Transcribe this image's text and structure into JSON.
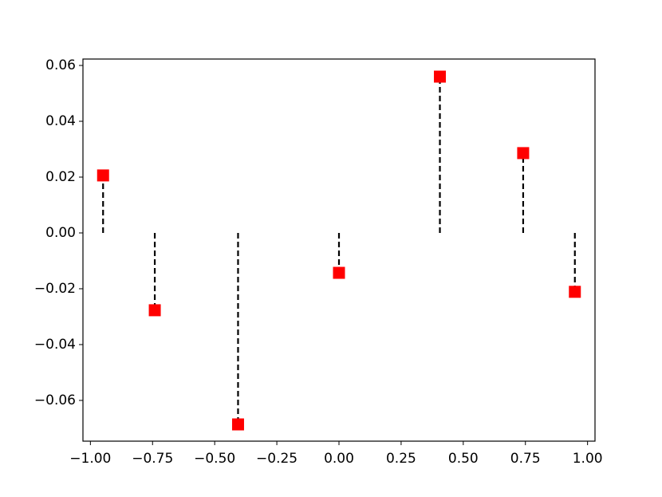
{
  "chart_data": {
    "type": "stem",
    "x": [
      -0.949,
      -0.741,
      -0.406,
      0,
      0.406,
      0.741,
      0.949
    ],
    "values": [
      0.0206,
      -0.0277,
      -0.0686,
      -0.0143,
      0.056,
      0.0286,
      -0.0211
    ],
    "color": "#ff0000",
    "stem_color": "#000000",
    "xlim": [
      -1.03,
      1.03
    ],
    "ylim": [
      -0.0746,
      0.0623
    ],
    "xticks": [
      {
        "value": -1,
        "label": "−1.00"
      },
      {
        "value": -0.75,
        "label": "−0.75"
      },
      {
        "value": -0.5,
        "label": "−0.50"
      },
      {
        "value": -0.25,
        "label": "−0.25"
      },
      {
        "value": 0,
        "label": "0.00"
      },
      {
        "value": 0.25,
        "label": "0.25"
      },
      {
        "value": 0.5,
        "label": "0.50"
      },
      {
        "value": 0.75,
        "label": "0.75"
      },
      {
        "value": 1,
        "label": "1.00"
      }
    ],
    "yticks": [
      {
        "value": -0.06,
        "label": "−0.06"
      },
      {
        "value": -0.04,
        "label": "−0.04"
      },
      {
        "value": -0.02,
        "label": "−0.02"
      },
      {
        "value": 0,
        "label": "0.00"
      },
      {
        "value": 0.02,
        "label": "0.02"
      },
      {
        "value": 0.04,
        "label": "0.04"
      },
      {
        "value": 0.06,
        "label": "0.06"
      }
    ]
  }
}
